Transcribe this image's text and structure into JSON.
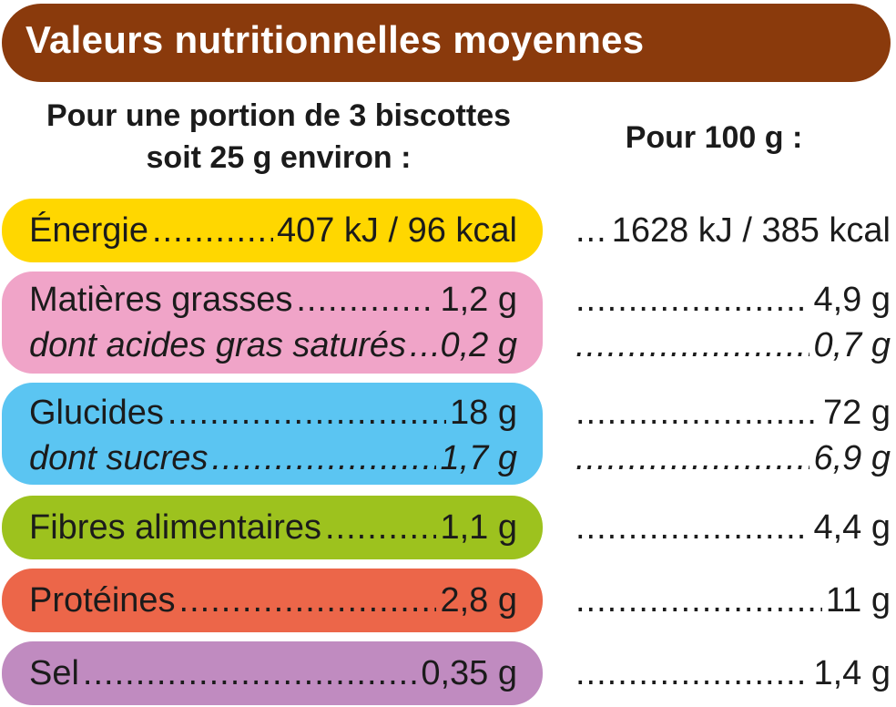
{
  "title": "Valeurs nutritionnelles moyennes",
  "header": {
    "portion_line1": "Pour une portion de 3 biscottes",
    "portion_line2": "soit 25 g environ :",
    "per100": "Pour 100 g :"
  },
  "colors": {
    "title_bg": "#8a3a0c",
    "energie": "#ffd700",
    "matieres_grasses": "#f0a4c8",
    "glucides": "#5bc5f2",
    "fibres": "#9dc21e",
    "proteines": "#ec6649",
    "sel": "#c08bc0"
  },
  "rows": {
    "energie": {
      "label": "Énergie",
      "portion": "407 kJ / 96 kcal",
      "per100": "1628 kJ / 385 kcal"
    },
    "matieres_grasses": {
      "label": "Matières grasses",
      "portion": "1,2 g",
      "per100": "4,9 g"
    },
    "satures": {
      "label": "dont acides gras saturés",
      "portion": "0,2 g",
      "per100": "0,7 g"
    },
    "glucides": {
      "label": "Glucides",
      "portion": "18 g",
      "per100": "72 g"
    },
    "sucres": {
      "label": "dont sucres",
      "portion": "1,7 g",
      "per100": "6,9 g"
    },
    "fibres": {
      "label": "Fibres alimentaires",
      "portion": "1,1 g",
      "per100": "4,4 g"
    },
    "proteines": {
      "label": "Protéines",
      "portion": "2,8 g",
      "per100": "11 g"
    },
    "sel": {
      "label": "Sel",
      "portion": "0,35 g",
      "per100": "1,4 g"
    }
  }
}
